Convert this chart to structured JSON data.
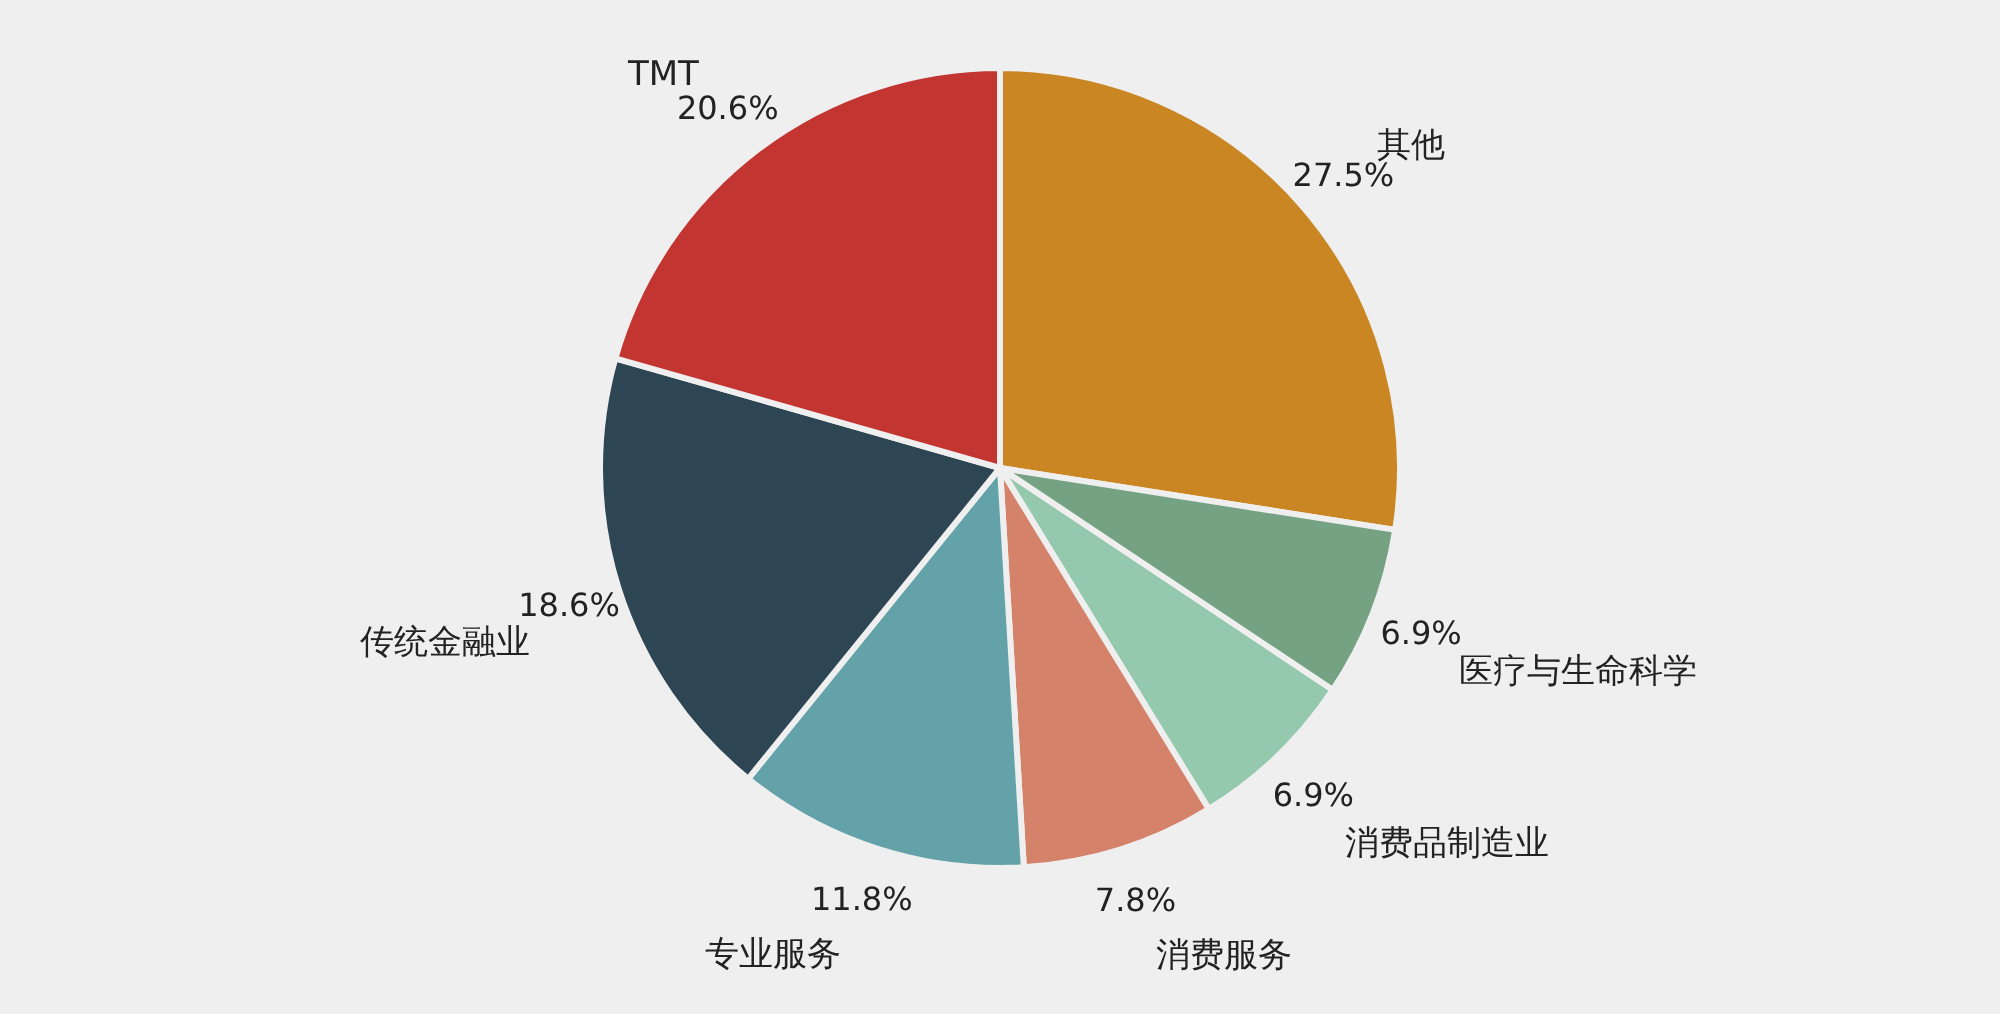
{
  "chart_data": {
    "type": "pie",
    "categories": [
      "其他",
      "医疗与生命科学",
      "消费品制造业",
      "消费服务",
      "专业服务",
      "传统金融业",
      "TMT"
    ],
    "values": [
      27.5,
      6.9,
      6.9,
      7.8,
      11.8,
      18.6,
      20.6
    ],
    "colors": [
      "#c98623",
      "#75a283",
      "#94c9ae",
      "#d5826a",
      "#64a2aa",
      "#2e4553",
      "#c23531"
    ],
    "value_labels": [
      "27.5%",
      "6.9%",
      "6.9%",
      "7.8%",
      "11.8%",
      "18.6%",
      "20.6%"
    ]
  }
}
